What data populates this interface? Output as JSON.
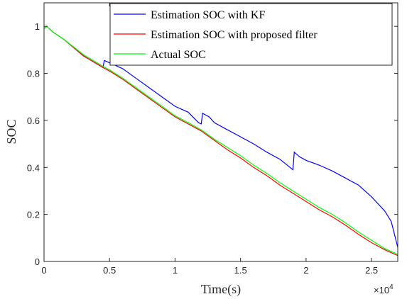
{
  "chart_data": {
    "type": "line",
    "title": "",
    "xlabel": "Time(s)",
    "ylabel": "SOC",
    "x_exponent_label": "×10",
    "x_exponent_power": "4",
    "xlim": [
      0,
      27000
    ],
    "ylim": [
      0,
      1.1
    ],
    "xticks": [
      0,
      5000,
      10000,
      15000,
      20000,
      25000
    ],
    "xtick_labels": [
      "0",
      "0.5",
      "1",
      "1.5",
      "2",
      "2.5"
    ],
    "yticks": [
      0,
      0.2,
      0.4,
      0.6,
      0.8,
      1
    ],
    "ytick_labels": [
      "0",
      "0.2",
      "0.4",
      "0.6",
      "0.8",
      "1"
    ],
    "grid": false,
    "legend_position": "top-right",
    "series": [
      {
        "name": "Estimation SOC with KF",
        "color": "#0000ff",
        "points": [
          [
            0,
            0.99
          ],
          [
            200,
            1.0
          ],
          [
            700,
            0.975
          ],
          [
            1500,
            0.945
          ],
          [
            3000,
            0.875
          ],
          [
            4500,
            0.825
          ],
          [
            4600,
            0.855
          ],
          [
            5000,
            0.845
          ],
          [
            6000,
            0.82
          ],
          [
            7000,
            0.78
          ],
          [
            8000,
            0.74
          ],
          [
            9000,
            0.7
          ],
          [
            10000,
            0.66
          ],
          [
            11000,
            0.635
          ],
          [
            11800,
            0.59
          ],
          [
            12000,
            0.585
          ],
          [
            12100,
            0.63
          ],
          [
            12600,
            0.615
          ],
          [
            13000,
            0.59
          ],
          [
            14000,
            0.56
          ],
          [
            15000,
            0.53
          ],
          [
            16000,
            0.5
          ],
          [
            17000,
            0.465
          ],
          [
            18000,
            0.435
          ],
          [
            19000,
            0.39
          ],
          [
            19100,
            0.465
          ],
          [
            19500,
            0.445
          ],
          [
            20000,
            0.43
          ],
          [
            21000,
            0.41
          ],
          [
            22000,
            0.385
          ],
          [
            23000,
            0.355
          ],
          [
            24000,
            0.325
          ],
          [
            25000,
            0.275
          ],
          [
            26000,
            0.215
          ],
          [
            26500,
            0.17
          ],
          [
            27000,
            0.06
          ]
        ]
      },
      {
        "name": "Estimation SOC with proposed filter",
        "color": "#ff0000",
        "points": [
          [
            0,
            0.99
          ],
          [
            200,
            1.0
          ],
          [
            700,
            0.975
          ],
          [
            1500,
            0.945
          ],
          [
            3000,
            0.875
          ],
          [
            4500,
            0.825
          ],
          [
            5000,
            0.81
          ],
          [
            6000,
            0.775
          ],
          [
            7000,
            0.735
          ],
          [
            8000,
            0.695
          ],
          [
            9000,
            0.655
          ],
          [
            10000,
            0.615
          ],
          [
            11000,
            0.585
          ],
          [
            12000,
            0.555
          ],
          [
            13000,
            0.515
          ],
          [
            14000,
            0.475
          ],
          [
            15000,
            0.44
          ],
          [
            16000,
            0.4
          ],
          [
            17000,
            0.365
          ],
          [
            18000,
            0.325
          ],
          [
            19000,
            0.29
          ],
          [
            20000,
            0.255
          ],
          [
            21000,
            0.22
          ],
          [
            22000,
            0.19
          ],
          [
            23000,
            0.155
          ],
          [
            24000,
            0.115
          ],
          [
            25000,
            0.08
          ],
          [
            26000,
            0.05
          ],
          [
            27000,
            0.025
          ]
        ]
      },
      {
        "name": "Actual SOC",
        "color": "#00ff00",
        "points": [
          [
            0,
            0.99
          ],
          [
            200,
            1.0
          ],
          [
            700,
            0.975
          ],
          [
            1500,
            0.945
          ],
          [
            3000,
            0.88
          ],
          [
            4500,
            0.83
          ],
          [
            5000,
            0.815
          ],
          [
            6000,
            0.78
          ],
          [
            7000,
            0.74
          ],
          [
            8000,
            0.7
          ],
          [
            9000,
            0.66
          ],
          [
            10000,
            0.62
          ],
          [
            11000,
            0.59
          ],
          [
            12000,
            0.56
          ],
          [
            13000,
            0.52
          ],
          [
            14000,
            0.485
          ],
          [
            15000,
            0.45
          ],
          [
            16000,
            0.41
          ],
          [
            17000,
            0.375
          ],
          [
            18000,
            0.335
          ],
          [
            19000,
            0.3
          ],
          [
            20000,
            0.265
          ],
          [
            21000,
            0.23
          ],
          [
            22000,
            0.2
          ],
          [
            23000,
            0.165
          ],
          [
            24000,
            0.125
          ],
          [
            25000,
            0.09
          ],
          [
            26000,
            0.055
          ],
          [
            27000,
            0.03
          ]
        ]
      }
    ]
  }
}
